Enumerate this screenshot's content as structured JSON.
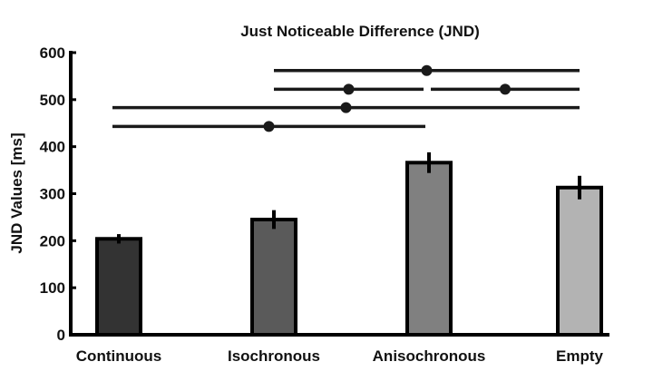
{
  "chart_data": {
    "type": "bar",
    "title": "Just Noticeable Difference (JND)",
    "xlabel": "",
    "ylabel": "JND Values [ms]",
    "ylim": [
      0,
      600
    ],
    "yticks": [
      0,
      100,
      200,
      300,
      400,
      500,
      600
    ],
    "categories": [
      "Continuous",
      "Isochronous",
      "Anisochronous",
      "Empty"
    ],
    "values": [
      204,
      245,
      366,
      313
    ],
    "errors": [
      10,
      20,
      22,
      25
    ],
    "colors": [
      "#333333",
      "#5a5a5a",
      "#808080",
      "#b3b3b3"
    ],
    "significance": [
      {
        "from": 1,
        "to": 3,
        "y": 562
      },
      {
        "from": 1,
        "to": 2,
        "y": 522
      },
      {
        "from": 2,
        "to": 3,
        "y": 522
      },
      {
        "from": 0,
        "to": 3,
        "y": 483
      },
      {
        "from": 0,
        "to": 2,
        "y": 443
      }
    ],
    "grid": false
  }
}
